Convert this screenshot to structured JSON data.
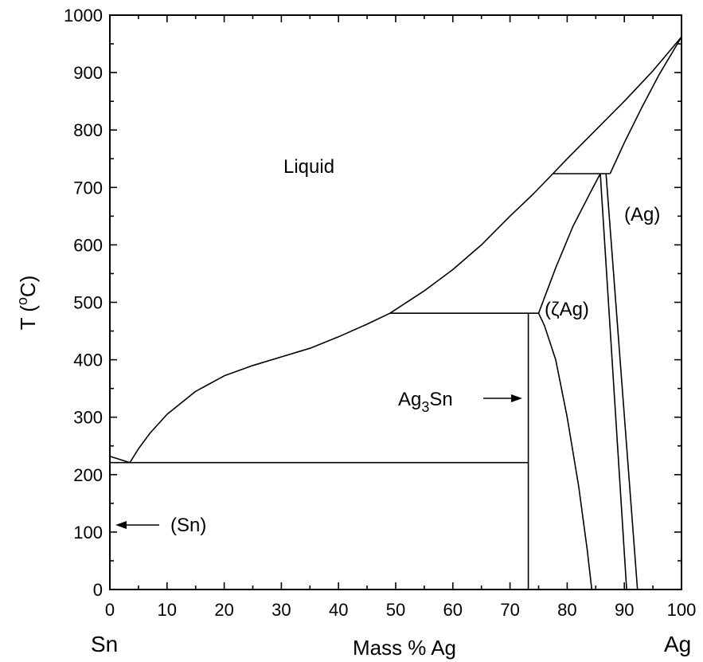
{
  "chart_data": {
    "type": "line",
    "title": "",
    "xlabel": "Mass % Ag",
    "ylabel_main": "T (",
    "ylabel_sup": "o",
    "ylabel_end": "C)",
    "xlim": [
      0,
      100
    ],
    "ylim": [
      0,
      1000
    ],
    "x_ticks": [
      "0",
      "10",
      "20",
      "30",
      "40",
      "50",
      "60",
      "70",
      "80",
      "90",
      "100"
    ],
    "y_ticks": [
      "0",
      "100",
      "200",
      "300",
      "400",
      "500",
      "600",
      "700",
      "800",
      "900",
      "1000"
    ],
    "left_element": "Sn",
    "right_element": "Ag",
    "labels": {
      "liquid": "Liquid",
      "ag": "(Ag)",
      "zeta": "(ζAg)",
      "ag3sn_main": "Ag",
      "ag3sn_sub": "3",
      "ag3sn_end": "Sn",
      "sn": "(Sn)"
    },
    "series": [
      {
        "values": [
          [
            0,
            232
          ],
          [
            3.5,
            221
          ]
        ]
      },
      {
        "values": [
          [
            3.5,
            221
          ],
          [
            5,
            245
          ],
          [
            7,
            272
          ],
          [
            10,
            305
          ],
          [
            15,
            345
          ],
          [
            20,
            372
          ],
          [
            25,
            390
          ],
          [
            30,
            405
          ],
          [
            35,
            420
          ],
          [
            40,
            440
          ],
          [
            45,
            462
          ],
          [
            49,
            481
          ],
          [
            55,
            520
          ],
          [
            60,
            557
          ],
          [
            65,
            600
          ],
          [
            70,
            650
          ],
          [
            74,
            688
          ],
          [
            77.5,
            724
          ],
          [
            80,
            750
          ],
          [
            85,
            800
          ],
          [
            90,
            850
          ],
          [
            95,
            903
          ],
          [
            100,
            962
          ]
        ]
      },
      {
        "values": [
          [
            77.5,
            724
          ],
          [
            87.5,
            724
          ]
        ]
      },
      {
        "values": [
          [
            87.5,
            724
          ],
          [
            90,
            778
          ],
          [
            93,
            838
          ],
          [
            96,
            895
          ],
          [
            100,
            962
          ]
        ]
      },
      {
        "values": [
          [
            49,
            481
          ],
          [
            75,
            481
          ]
        ]
      },
      {
        "values": [
          [
            75,
            481
          ],
          [
            78,
            560
          ],
          [
            81,
            632
          ],
          [
            84,
            690
          ],
          [
            85.8,
            724
          ]
        ]
      },
      {
        "values": [
          [
            85.8,
            724
          ],
          [
            90.4,
            0
          ]
        ]
      },
      {
        "values": [
          [
            86.8,
            724
          ],
          [
            92.3,
            0
          ]
        ]
      },
      {
        "values": [
          [
            73.2,
            0
          ],
          [
            73.2,
            481
          ]
        ]
      },
      {
        "values": [
          [
            75,
            481
          ],
          [
            76,
            460
          ],
          [
            78,
            400
          ],
          [
            80,
            300
          ],
          [
            82,
            180
          ],
          [
            83.5,
            70
          ],
          [
            84.3,
            0
          ]
        ]
      },
      {
        "values": [
          [
            0,
            221
          ],
          [
            73.2,
            221
          ]
        ]
      }
    ]
  }
}
